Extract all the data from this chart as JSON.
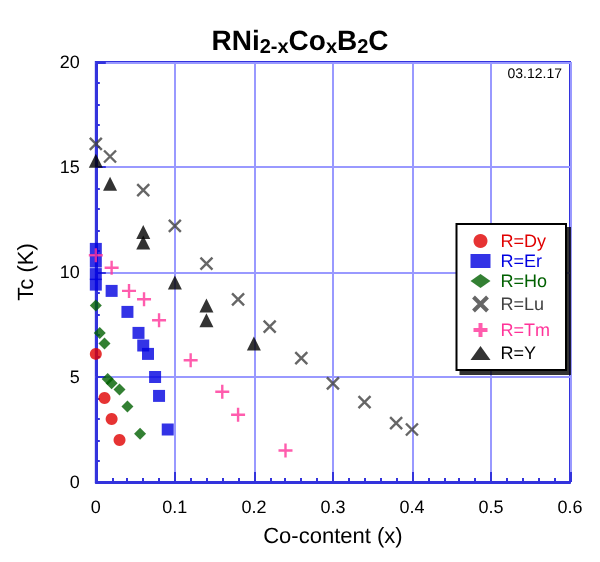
{
  "chart_data": {
    "type": "scatter",
    "title": "RNi$_{2-x}$Co$_{x}$B$_{2}$C",
    "xlabel": "Co-content (x)",
    "ylabel": "Tc (K)",
    "annotations": [
      "03.12.17"
    ],
    "xlim": [
      0,
      0.6
    ],
    "xticks": [
      0,
      0.1,
      0.2,
      0.3,
      0.4,
      0.5,
      0.6
    ],
    "ylim": [
      0,
      20
    ],
    "yticks": [
      0,
      5,
      10,
      15,
      20
    ],
    "grid": true,
    "legend": "right",
    "series": [
      {
        "name": "R=Dy",
        "color": "#e00000",
        "marker": "circle",
        "x": [
          0,
          0.011,
          0.02,
          0.03
        ],
        "values": [
          6.1,
          4.0,
          3.0,
          2.0
        ]
      },
      {
        "name": "R=Er",
        "color": "#0000e0",
        "marker": "square",
        "x": [
          0,
          0,
          0,
          0,
          0.02,
          0.04,
          0.054,
          0.06,
          0.066,
          0.075,
          0.08,
          0.091
        ],
        "values": [
          9.4,
          9.9,
          10.5,
          11.1,
          9.1,
          8.1,
          7.1,
          6.5,
          6.1,
          5.0,
          4.1,
          2.5
        ]
      },
      {
        "name": "R=Ho",
        "color": "#006000",
        "marker": "diamond",
        "x": [
          0,
          0.005,
          0.011,
          0.015,
          0.02,
          0.03,
          0.04,
          0.056
        ],
        "values": [
          8.4,
          7.1,
          6.6,
          4.9,
          4.7,
          4.4,
          3.6,
          2.3
        ]
      },
      {
        "name": "R=Lu",
        "color": "#404040",
        "marker": "cross",
        "x": [
          0,
          0.018,
          0.06,
          0.1,
          0.14,
          0.18,
          0.22,
          0.26,
          0.3,
          0.34,
          0.38,
          0.4
        ],
        "values": [
          16.1,
          15.5,
          13.9,
          12.2,
          10.4,
          8.7,
          7.4,
          5.9,
          4.7,
          3.8,
          2.8,
          2.5
        ]
      },
      {
        "name": "R=Tm",
        "color": "#ff3399",
        "marker": "plus",
        "x": [
          0,
          0.02,
          0.042,
          0.061,
          0.08,
          0.12,
          0.16,
          0.18,
          0.24
        ],
        "values": [
          10.8,
          10.2,
          9.1,
          8.7,
          7.7,
          5.8,
          4.3,
          3.2,
          1.5
        ]
      },
      {
        "name": "R=Y",
        "color": "#000000",
        "marker": "triangle",
        "x": [
          0,
          0.018,
          0.06,
          0.06,
          0.1,
          0.14,
          0.14,
          0.2
        ],
        "values": [
          15.3,
          14.2,
          11.9,
          11.4,
          9.5,
          8.4,
          7.7,
          6.6
        ]
      }
    ]
  }
}
